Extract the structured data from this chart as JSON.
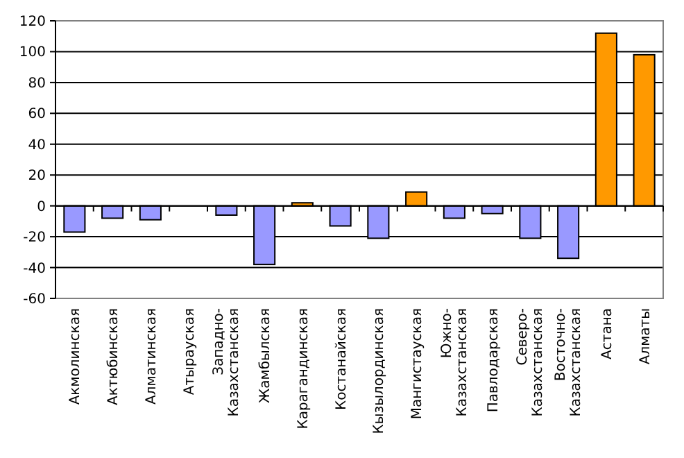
{
  "chart_data": {
    "type": "bar",
    "categories": [
      "Акмолинская",
      "Актюбинская",
      "Алматинская",
      "Атырауская",
      "Западно-Казахстанская",
      "Жамбылская",
      "Карагандинская",
      "Костанайская",
      "Кызылординская",
      "Мангистауская",
      "Южно-Казахстанская",
      "Павлодарская",
      "Северо-Казахстанская",
      "Восточно-Казахстанская",
      "Астана",
      "Алматы"
    ],
    "values": [
      -17,
      -8,
      -9,
      0,
      -6,
      -38,
      2,
      -13,
      -21,
      9,
      -8,
      -5,
      -21,
      -34,
      112,
      98
    ],
    "colors": [
      "#9999ff",
      "#9999ff",
      "#9999ff",
      "#9999ff",
      "#9999ff",
      "#9999ff",
      "#ff9900",
      "#9999ff",
      "#9999ff",
      "#ff9900",
      "#9999ff",
      "#9999ff",
      "#9999ff",
      "#9999ff",
      "#ff9900",
      "#ff9900"
    ],
    "ylim": [
      -60,
      120
    ],
    "yticks": [
      -60,
      -40,
      -20,
      0,
      20,
      40,
      60,
      80,
      100,
      120
    ],
    "grid": "y"
  }
}
